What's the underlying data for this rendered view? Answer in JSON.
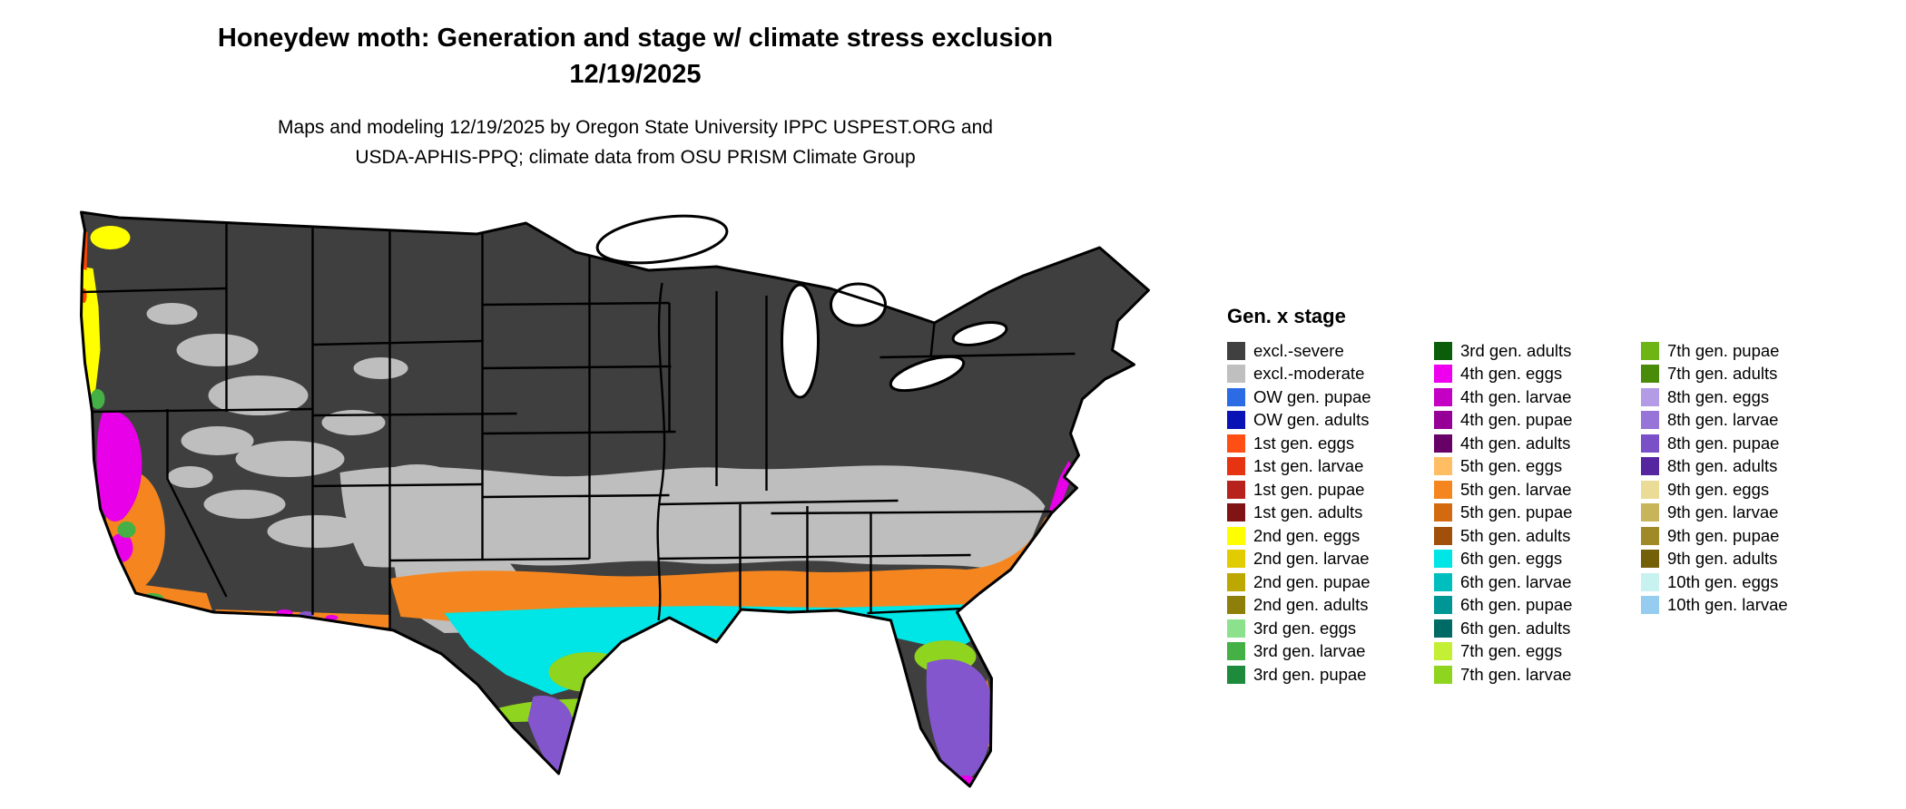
{
  "header": {
    "title_line1": "Honeydew moth: Generation and stage w/ climate stress exclusion",
    "title_line2": "12/19/2025",
    "subtitle_line1": "Maps and modeling 12/19/2025 by Oregon State University IPPC USPEST.ORG and",
    "subtitle_line2": "USDA-APHIS-PPQ; climate data from OSU PRISM Climate Group"
  },
  "legend": {
    "title": "Gen. x stage",
    "items": [
      {
        "label": "excl.-severe",
        "color": "#404040"
      },
      {
        "label": "excl.-moderate",
        "color": "#BFBFBF"
      },
      {
        "label": "OW gen. pupae",
        "color": "#2B6BE4"
      },
      {
        "label": "OW gen. adults",
        "color": "#0912B4"
      },
      {
        "label": "1st gen. eggs",
        "color": "#FF4F14"
      },
      {
        "label": "1st gen. larvae",
        "color": "#E63312"
      },
      {
        "label": "1st gen. pupae",
        "color": "#B7221C"
      },
      {
        "label": "1st gen. adults",
        "color": "#801414"
      },
      {
        "label": "2nd gen. eggs",
        "color": "#FFFF00"
      },
      {
        "label": "2nd gen. larvae",
        "color": "#E0CC00"
      },
      {
        "label": "2nd gen. pupae",
        "color": "#BCA800"
      },
      {
        "label": "2nd gen. adults",
        "color": "#8E7E0A"
      },
      {
        "label": "3rd gen. eggs",
        "color": "#8CE28C"
      },
      {
        "label": "3rd gen. larvae",
        "color": "#45B045"
      },
      {
        "label": "3rd gen. pupae",
        "color": "#1E8A3C"
      },
      {
        "label": "3rd gen. adults",
        "color": "#0A5E0A"
      },
      {
        "label": "4th gen. eggs",
        "color": "#EE00EE"
      },
      {
        "label": "4th gen. larvae",
        "color": "#C400C4"
      },
      {
        "label": "4th gen. pupae",
        "color": "#970097"
      },
      {
        "label": "4th gen. adults",
        "color": "#670067"
      },
      {
        "label": "5th gen. eggs",
        "color": "#FFBE64"
      },
      {
        "label": "5th gen. larvae",
        "color": "#F5861F"
      },
      {
        "label": "5th gen. pupae",
        "color": "#D46A10"
      },
      {
        "label": "5th gen. adults",
        "color": "#A0500A"
      },
      {
        "label": "6th gen. eggs",
        "color": "#00E5E5"
      },
      {
        "label": "6th gen. larvae",
        "color": "#00BEBE"
      },
      {
        "label": "6th gen. pupae",
        "color": "#009696"
      },
      {
        "label": "6th gen. adults",
        "color": "#006A64"
      },
      {
        "label": "7th gen. eggs",
        "color": "#C3EF35"
      },
      {
        "label": "7th gen. larvae",
        "color": "#8FD41E"
      },
      {
        "label": "7th gen. pupae",
        "color": "#6DB414"
      },
      {
        "label": "7th gen. adults",
        "color": "#4A8C0A"
      },
      {
        "label": "8th gen. eggs",
        "color": "#B49BE6"
      },
      {
        "label": "8th gen. larvae",
        "color": "#9674D8"
      },
      {
        "label": "8th gen. pupae",
        "color": "#7A50C8"
      },
      {
        "label": "8th gen. adults",
        "color": "#5526A0"
      },
      {
        "label": "9th gen. eggs",
        "color": "#EADC96"
      },
      {
        "label": "9th gen. larvae",
        "color": "#C8B45A"
      },
      {
        "label": "9th gen. pupae",
        "color": "#A08A28"
      },
      {
        "label": "9th gen. adults",
        "color": "#746008"
      },
      {
        "label": "10th gen. eggs",
        "color": "#C8F2F0"
      },
      {
        "label": "10th gen. larvae",
        "color": "#96CCF0"
      }
    ]
  },
  "map": {
    "colors": {
      "severe": "#3F3F3F",
      "moderate": "#BEBEBE",
      "gen1_eggs": "#FF4500",
      "gen2_eggs": "#FFFF00",
      "gen3_larvae": "#45B045",
      "gen4_eggs": "#E800E8",
      "gen5_larvae": "#F5861F",
      "gen6_eggs": "#00E5E5",
      "gen7_larvae": "#8FD41E",
      "gen8_pupae": "#8456CD",
      "border": "#000000",
      "water": "#FFFFFF"
    }
  }
}
